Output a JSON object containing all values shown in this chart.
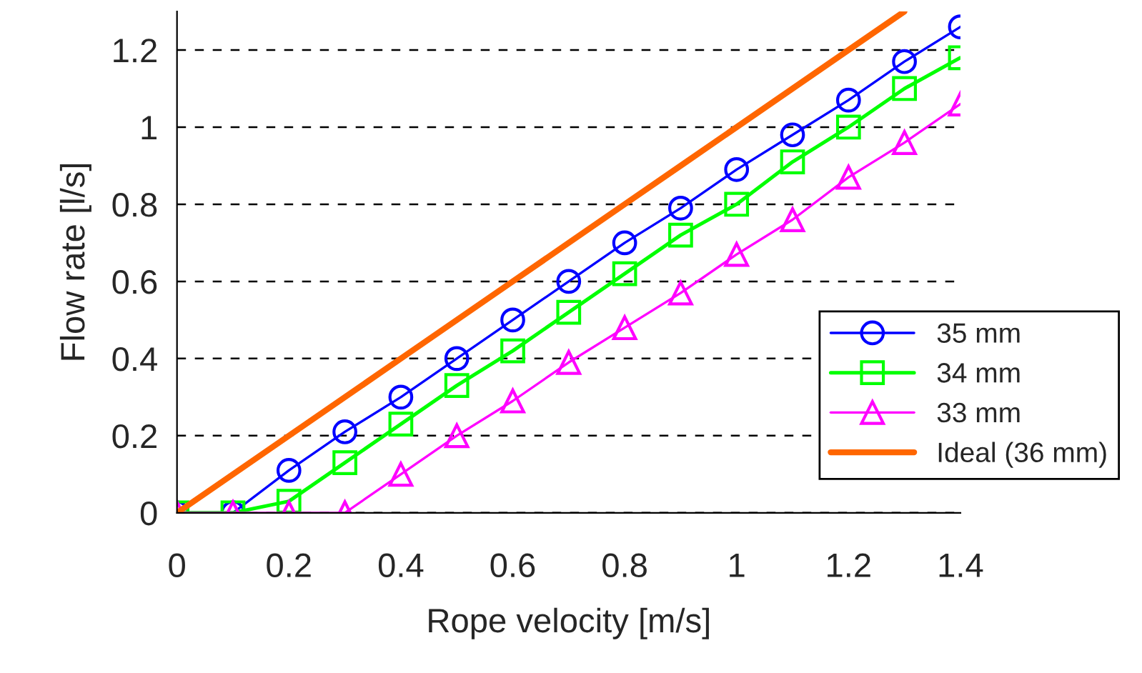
{
  "chart_data": {
    "type": "line",
    "xlabel": "Rope velocity [m/s]",
    "ylabel": "Flow rate [l/s]",
    "x": [
      0,
      0.1,
      0.2,
      0.3,
      0.4,
      0.5,
      0.6,
      0.7,
      0.8,
      0.9,
      1.0,
      1.1,
      1.2,
      1.3,
      1.4
    ],
    "series": [
      {
        "name": "35 mm",
        "color": "#0000ff",
        "marker": "circle",
        "values": [
          0,
          0,
          0.11,
          0.21,
          0.3,
          0.4,
          0.5,
          0.6,
          0.7,
          0.79,
          0.89,
          0.98,
          1.07,
          1.17,
          1.26
        ]
      },
      {
        "name": "34 mm",
        "color": "#00ff00",
        "marker": "square",
        "values": [
          0,
          0,
          0.03,
          0.13,
          0.23,
          0.33,
          0.42,
          0.52,
          0.62,
          0.72,
          0.8,
          0.91,
          1.0,
          1.1,
          1.18
        ]
      },
      {
        "name": "33 mm",
        "color": "#ff00ff",
        "marker": "triangle",
        "values": [
          0,
          0,
          0,
          0,
          0.1,
          0.2,
          0.29,
          0.39,
          0.48,
          0.57,
          0.67,
          0.76,
          0.87,
          0.96,
          1.06
        ]
      },
      {
        "name": "Ideal (36 mm)",
        "color": "#ff6600",
        "marker": "none",
        "x": [
          0,
          0.1,
          0.2,
          0.3,
          0.4,
          0.5,
          0.6,
          0.7,
          0.8,
          0.9,
          1.0,
          1.1,
          1.2,
          1.3
        ],
        "values": [
          0,
          0.1,
          0.2,
          0.3,
          0.4,
          0.5,
          0.6,
          0.7,
          0.8,
          0.9,
          1.0,
          1.1,
          1.2,
          1.3
        ]
      }
    ],
    "xlim": [
      0,
      1.4
    ],
    "xticks": [
      0,
      0.2,
      0.4,
      0.6,
      0.8,
      1,
      1.2,
      1.4
    ],
    "ylim": [
      0,
      1.3
    ],
    "yticks": [
      0,
      0.2,
      0.4,
      0.6,
      0.8,
      1,
      1.2
    ],
    "grid": "y",
    "legend": "bottom right"
  }
}
